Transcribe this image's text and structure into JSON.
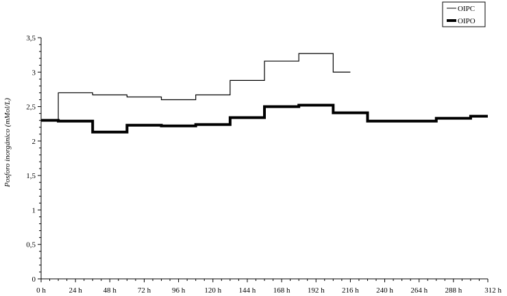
{
  "chart_data": {
    "type": "line",
    "step": true,
    "title": "",
    "xlabel": "",
    "ylabel": "Posforo inorgánico (mMol/L)",
    "xlim": [
      0,
      312
    ],
    "ylim": [
      0,
      3.5
    ],
    "x_ticks": [
      0,
      24,
      48,
      72,
      96,
      120,
      144,
      168,
      192,
      216,
      240,
      264,
      288,
      312
    ],
    "x_tick_labels": [
      "0 h",
      "24 h",
      "48 h",
      "72 h",
      "96 h",
      "120 h",
      "144 h",
      "168 h",
      "192 h",
      "216 h",
      "240 h",
      "264 h",
      "288 h",
      "312 h"
    ],
    "y_ticks": [
      0,
      0.5,
      1,
      1.5,
      2,
      2.5,
      3,
      3.5
    ],
    "y_tick_labels": [
      "0",
      "0,5",
      "1",
      "1,5",
      "2",
      "2,5",
      "3",
      "3,5"
    ],
    "grid": false,
    "legend_position": "top-right",
    "series": [
      {
        "name": "OIPC",
        "color": "#000000",
        "line_weight": "thin",
        "x": [
          0,
          12,
          36,
          60,
          84,
          108,
          132,
          156,
          180,
          204,
          216
        ],
        "y": [
          2.3,
          2.7,
          2.67,
          2.64,
          2.6,
          2.67,
          2.88,
          3.16,
          3.27,
          3.0,
          3.0
        ]
      },
      {
        "name": "OIPO",
        "color": "#000000",
        "line_weight": "thick",
        "x": [
          0,
          12,
          36,
          60,
          84,
          108,
          132,
          156,
          180,
          204,
          228,
          252,
          276,
          300,
          312
        ],
        "y": [
          2.3,
          2.29,
          2.13,
          2.23,
          2.22,
          2.24,
          2.34,
          2.5,
          2.52,
          2.41,
          2.29,
          2.29,
          2.33,
          2.36,
          2.36
        ]
      }
    ]
  }
}
